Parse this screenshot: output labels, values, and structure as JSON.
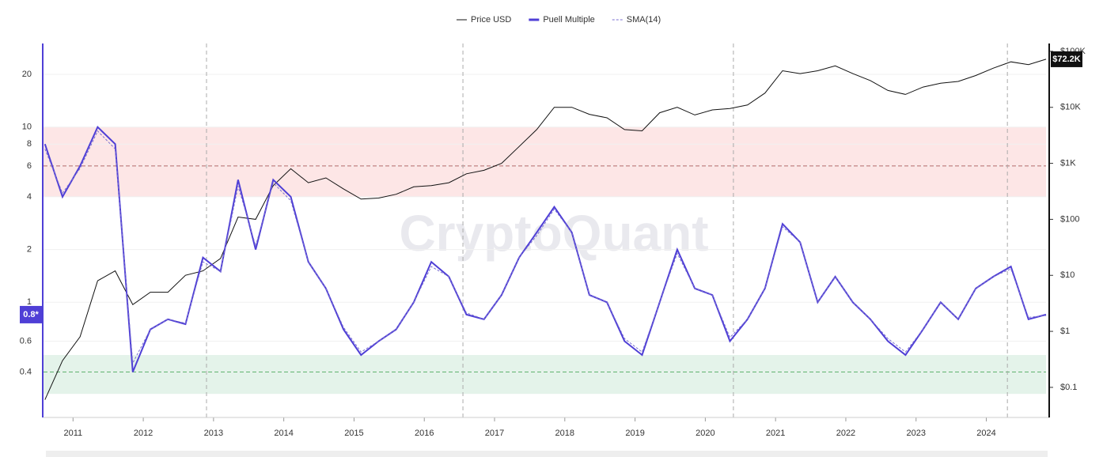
{
  "chart_data": {
    "type": "line",
    "watermark": "CryptoQuant",
    "log_scale": true,
    "grid": true,
    "x": [
      2010.6,
      2010.85,
      2011.1,
      2011.35,
      2011.6,
      2011.85,
      2012.1,
      2012.35,
      2012.6,
      2012.85,
      2013.1,
      2013.35,
      2013.6,
      2013.85,
      2014.1,
      2014.35,
      2014.6,
      2014.85,
      2015.1,
      2015.35,
      2015.6,
      2015.85,
      2016.1,
      2016.35,
      2016.6,
      2016.85,
      2017.1,
      2017.35,
      2017.6,
      2017.85,
      2018.1,
      2018.35,
      2018.6,
      2018.85,
      2019.1,
      2019.35,
      2019.6,
      2019.85,
      2020.1,
      2020.35,
      2020.6,
      2020.85,
      2021.1,
      2021.35,
      2021.6,
      2021.85,
      2022.1,
      2022.35,
      2022.6,
      2022.85,
      2023.1,
      2023.35,
      2023.6,
      2023.85,
      2024.1,
      2024.35,
      2024.6,
      2024.85
    ],
    "series": [
      {
        "name": "Price USD",
        "color": "#111111",
        "axis": "y2",
        "dash": false,
        "values": [
          0.06,
          0.3,
          0.8,
          8,
          12,
          3,
          5,
          5,
          10,
          12,
          20,
          110,
          100,
          400,
          800,
          450,
          550,
          350,
          230,
          240,
          280,
          380,
          400,
          450,
          650,
          750,
          1000,
          2000,
          4000,
          10000,
          10000,
          7500,
          6500,
          4000,
          3800,
          8000,
          10000,
          7300,
          9000,
          9500,
          11000,
          18000,
          45000,
          40000,
          45000,
          55000,
          40000,
          30000,
          20000,
          17000,
          23000,
          27000,
          29000,
          37000,
          50000,
          65000,
          58000,
          72200
        ]
      },
      {
        "name": "Puell Multiple",
        "color": "#4f3fd6",
        "axis": "y",
        "dash": false,
        "values": [
          8,
          4,
          6,
          10,
          8,
          0.4,
          0.7,
          0.8,
          0.75,
          1.8,
          1.5,
          5,
          2,
          5,
          4,
          1.7,
          1.2,
          0.7,
          0.5,
          0.6,
          0.7,
          1.0,
          1.7,
          1.4,
          0.85,
          0.8,
          1.1,
          1.8,
          2.5,
          3.5,
          2.5,
          1.1,
          1.0,
          0.6,
          0.5,
          1.0,
          2.0,
          1.2,
          1.1,
          0.6,
          0.8,
          1.2,
          2.8,
          2.2,
          1.0,
          1.4,
          1.0,
          0.8,
          0.6,
          0.5,
          0.7,
          1.0,
          0.8,
          1.2,
          1.4,
          1.6,
          0.8,
          0.85
        ]
      },
      {
        "name": "SMA(14)",
        "color": "#7a6fd0",
        "axis": "y",
        "dash": true,
        "values": [
          7.5,
          4.2,
          5.8,
          9.5,
          7.5,
          0.45,
          0.7,
          0.8,
          0.76,
          1.7,
          1.5,
          4.6,
          2.1,
          4.8,
          3.8,
          1.7,
          1.2,
          0.72,
          0.52,
          0.6,
          0.7,
          1.0,
          1.6,
          1.4,
          0.87,
          0.8,
          1.1,
          1.8,
          2.4,
          3.4,
          2.5,
          1.1,
          1.0,
          0.62,
          0.52,
          1.0,
          1.9,
          1.2,
          1.1,
          0.63,
          0.8,
          1.2,
          2.7,
          2.2,
          1.0,
          1.4,
          1.0,
          0.8,
          0.62,
          0.52,
          0.7,
          1.0,
          0.8,
          1.2,
          1.4,
          1.55,
          0.82,
          0.84
        ]
      }
    ],
    "current_labels": {
      "y": "0.8*",
      "y2": "$72.2K"
    },
    "xlim": [
      2010.58,
      2024.85
    ],
    "xticks": [
      2011,
      2012,
      2013,
      2014,
      2015,
      2016,
      2017,
      2018,
      2019,
      2020,
      2021,
      2022,
      2023,
      2024
    ],
    "ylim": [
      0.22,
      30
    ],
    "yticks": [
      0.4,
      0.6,
      1,
      2,
      4,
      6,
      8,
      10,
      20
    ],
    "y2lim": [
      0.029,
      138000
    ],
    "y2ticks": [
      {
        "value": 0.1,
        "label": "$0.1"
      },
      {
        "value": 1,
        "label": "$1"
      },
      {
        "value": 10,
        "label": "$10"
      },
      {
        "value": 100,
        "label": "$100"
      },
      {
        "value": 1000,
        "label": "$1K"
      },
      {
        "value": 10000,
        "label": "$10K"
      },
      {
        "value": 100000,
        "label": "$100K"
      }
    ],
    "bands": [
      {
        "from": 4,
        "to": 10,
        "color": "#fde6e6"
      },
      {
        "from": 0.3,
        "to": 0.5,
        "color": "#e4f3ea"
      }
    ],
    "hlines": [
      {
        "value": 6,
        "color": "#b56a6a"
      },
      {
        "value": 0.4,
        "color": "#5fb36f"
      }
    ],
    "vlines": [
      2012.9,
      2016.55,
      2020.4,
      2024.3
    ]
  }
}
